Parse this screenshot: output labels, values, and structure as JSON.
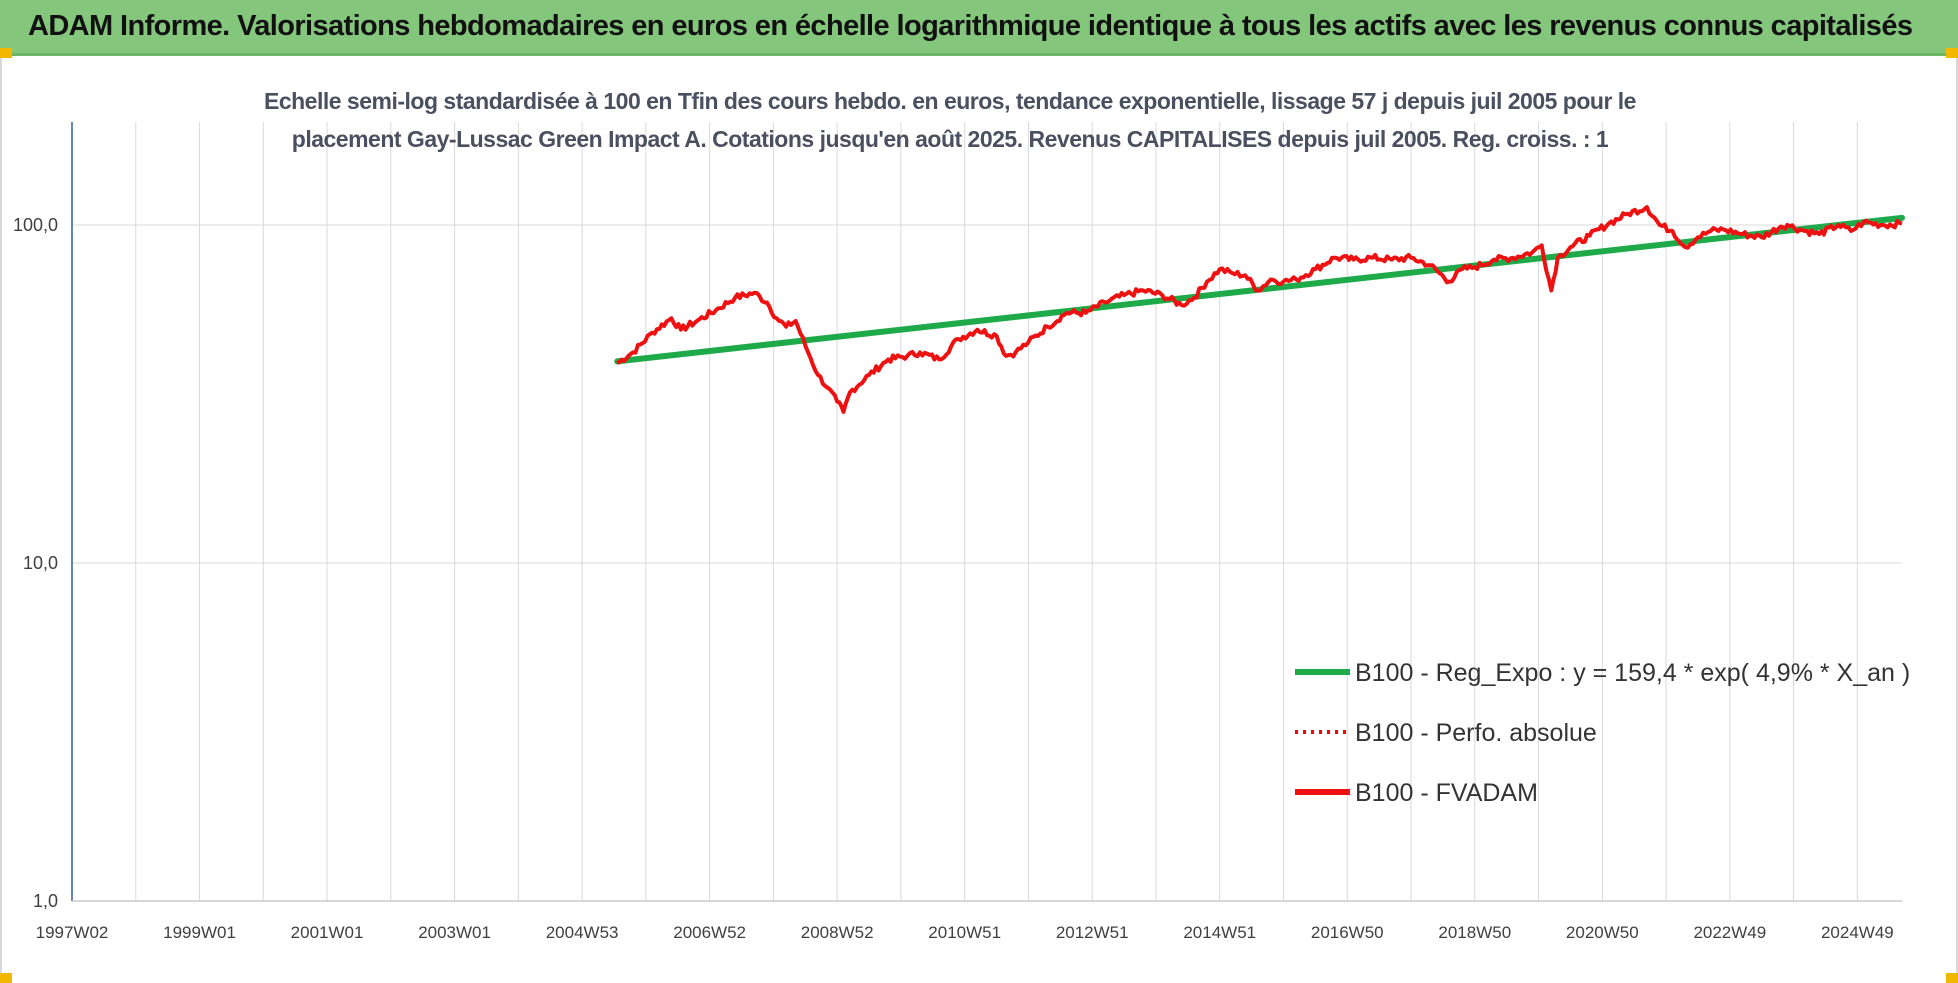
{
  "header": {
    "title": "ADAM Informe. Valorisations hebdomadaires en euros en échelle logarithmique identique à tous les actifs avec les revenus connus capitalisés"
  },
  "chart_data": {
    "type": "line",
    "title_line1": "Echelle semi-log standardisée à 100 en Tfin des cours hebdo. en euros, tendance exponentielle, lissage 57 j depuis juil 2005 pour le",
    "title_line2": "placement Gay-Lussac Green Impact A. Cotations jusqu'en août 2025. Revenus CAPITALISES depuis juil 2005. Reg. croiss. : 1",
    "y_scale": "log",
    "ylim": [
      1,
      200
    ],
    "y_ticks": [
      "1,0",
      "10,0",
      "100,0"
    ],
    "y_tick_values": [
      1,
      10,
      100
    ],
    "x_range_years": [
      1997.0,
      2025.7
    ],
    "x_tick_labels": [
      "1997W02",
      "1999W01",
      "2001W01",
      "2003W01",
      "2004W53",
      "2006W52",
      "2008W52",
      "2010W51",
      "2012W51",
      "2014W51",
      "2016W50",
      "2018W50",
      "2020W50",
      "2022W49",
      "2024W49"
    ],
    "x_tick_years": [
      1997.0,
      1999.0,
      2001.0,
      2003.0,
      2005.0,
      2007.0,
      2009.0,
      2011.0,
      2013.0,
      2015.0,
      2017.0,
      2019.0,
      2021.0,
      2023.0,
      2025.0
    ],
    "grid": true,
    "legend_position": "bottom-right",
    "series": [
      {
        "name": "B100 - Reg_Expo : y = 159,4 * exp( 4,9% *  X_an )",
        "color": "#1faa4a",
        "style": "solid",
        "x": [
          2005.55,
          2025.7
        ],
        "y": [
          39.5,
          105
        ]
      },
      {
        "name": "B100 - Perfo. absolue",
        "color": "#ff0000",
        "style": "dotted",
        "x": [],
        "y": []
      },
      {
        "name": "B100 - FVADAM",
        "color": "#ee1111",
        "style": "solid",
        "x": [
          2005.55,
          2005.8,
          2006.1,
          2006.4,
          2006.55,
          2006.8,
          2007.1,
          2007.4,
          2007.7,
          2007.9,
          2008.05,
          2008.2,
          2008.35,
          2008.5,
          2008.7,
          2008.85,
          2009.0,
          2009.1,
          2009.2,
          2009.5,
          2009.8,
          2010.1,
          2010.3,
          2010.6,
          2010.9,
          2011.2,
          2011.5,
          2011.65,
          2011.8,
          2012.0,
          2012.3,
          2012.6,
          2012.9,
          2013.2,
          2013.5,
          2013.8,
          2014.1,
          2014.4,
          2014.6,
          2014.8,
          2015.0,
          2015.2,
          2015.4,
          2015.6,
          2015.8,
          2016.0,
          2016.2,
          2016.5,
          2016.8,
          2017.1,
          2017.4,
          2017.7,
          2018.0,
          2018.3,
          2018.6,
          2018.8,
          2019.0,
          2019.3,
          2019.6,
          2019.9,
          2020.05,
          2020.2,
          2020.3,
          2020.5,
          2020.8,
          2021.1,
          2021.4,
          2021.7,
          2021.9,
          2022.1,
          2022.3,
          2022.5,
          2022.7,
          2022.9,
          2023.2,
          2023.5,
          2023.8,
          2023.9,
          2024.1,
          2024.4,
          2024.7,
          2024.9,
          2025.1,
          2025.4,
          2025.7
        ],
        "y": [
          39,
          42,
          48,
          53,
          49,
          52,
          56,
          61,
          63,
          59,
          53,
          50,
          52,
          44,
          36,
          33,
          30,
          28,
          32,
          36,
          40,
          41,
          42,
          40,
          46,
          49,
          47,
          41,
          42,
          45,
          50,
          55,
          55,
          59,
          62,
          64,
          62,
          58,
          61,
          68,
          74,
          72,
          71,
          64,
          69,
          68,
          69,
          74,
          80,
          79,
          80,
          79,
          80,
          76,
          68,
          74,
          75,
          79,
          80,
          83,
          87,
          64,
          80,
          86,
          93,
          101,
          108,
          113,
          100,
          96,
          86,
          92,
          96,
          97,
          94,
          92,
          99,
          100,
          97,
          94,
          100,
          96,
          102,
          100,
          101
        ]
      }
    ]
  }
}
